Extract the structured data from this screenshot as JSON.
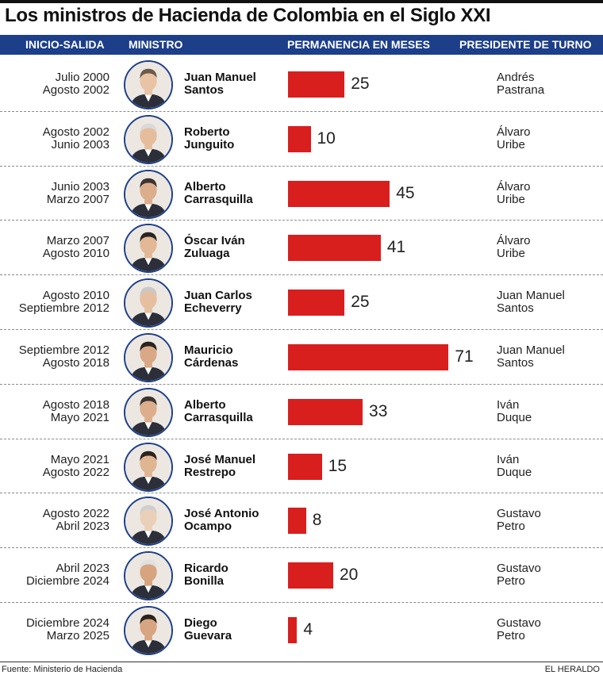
{
  "title": "Los ministros de Hacienda de Colombia en el Siglo XXI",
  "headers": {
    "dates": "INICIO-SALIDA",
    "minister": "MINISTRO",
    "tenure": "PERMANENCIA EN MESES",
    "president": "PRESIDENTE DE TURNO"
  },
  "source": "Fuente: Ministerio de Hacienda",
  "brand": "EL HERALDO",
  "colors": {
    "header_bg": "#1d3f8a",
    "bar": "#d91e1e",
    "photo_ring": "#1d3f8a"
  },
  "rows": [
    {
      "start": "Julio 2000",
      "end": "Agosto 2002",
      "name1": "Juan Manuel",
      "name2": "Santos",
      "months": 25,
      "pres1": "Andrés",
      "pres2": "Pastrana"
    },
    {
      "start": "Agosto 2002",
      "end": "Junio 2003",
      "name1": "Roberto",
      "name2": "Junguito",
      "months": 10,
      "pres1": "Álvaro",
      "pres2": "Uribe"
    },
    {
      "start": "Junio 2003",
      "end": "Marzo 2007",
      "name1": "Alberto",
      "name2": "Carrasquilla",
      "months": 45,
      "pres1": "Álvaro",
      "pres2": "Uribe"
    },
    {
      "start": "Marzo 2007",
      "end": "Agosto 2010",
      "name1": "Óscar Iván",
      "name2": "Zuluaga",
      "months": 41,
      "pres1": "Álvaro",
      "pres2": "Uribe"
    },
    {
      "start": "Agosto 2010",
      "end": "Septiembre 2012",
      "name1": "Juan Carlos",
      "name2": "Echeverry",
      "months": 25,
      "pres1": "Juan Manuel",
      "pres2": "Santos"
    },
    {
      "start": "Septiembre 2012",
      "end": "Agosto 2018",
      "name1": "Mauricio",
      "name2": "Cárdenas",
      "months": 71,
      "pres1": "Juan Manuel",
      "pres2": "Santos"
    },
    {
      "start": "Agosto 2018",
      "end": "Mayo 2021",
      "name1": "Alberto",
      "name2": "Carrasquilla",
      "months": 33,
      "pres1": "Iván",
      "pres2": "Duque"
    },
    {
      "start": "Mayo 2021",
      "end": "Agosto 2022",
      "name1": "José Manuel",
      "name2": "Restrepo",
      "months": 15,
      "pres1": "Iván",
      "pres2": "Duque"
    },
    {
      "start": "Agosto 2022",
      "end": "Abril 2023",
      "name1": "José Antonio",
      "name2": "Ocampo",
      "months": 8,
      "pres1": "Gustavo",
      "pres2": "Petro"
    },
    {
      "start": "Abril 2023",
      "end": "Diciembre 2024",
      "name1": "Ricardo",
      "name2": "Bonilla",
      "months": 20,
      "pres1": "Gustavo",
      "pres2": "Petro"
    },
    {
      "start": "Diciembre 2024",
      "end": "Marzo 2025",
      "name1": "Diego",
      "name2": "Guevara",
      "months": 4,
      "pres1": "Gustavo",
      "pres2": "Petro"
    }
  ],
  "chart_data": {
    "type": "bar",
    "orientation": "horizontal",
    "title": "Los ministros de Hacienda de Colombia en el Siglo XXI",
    "categories": [
      "Juan Manuel Santos",
      "Roberto Junguito",
      "Alberto Carrasquilla",
      "Óscar Iván Zuluaga",
      "Juan Carlos Echeverry",
      "Mauricio Cárdenas",
      "Alberto Carrasquilla",
      "José Manuel Restrepo",
      "José Antonio Ocampo",
      "Ricardo Bonilla",
      "Diego Guevara"
    ],
    "values": [
      25,
      10,
      45,
      41,
      25,
      71,
      33,
      15,
      8,
      20,
      4
    ],
    "xlabel": "PERMANENCIA EN MESES",
    "ylabel": "MINISTRO",
    "grid": false,
    "legend": "none",
    "data_labels": true
  }
}
